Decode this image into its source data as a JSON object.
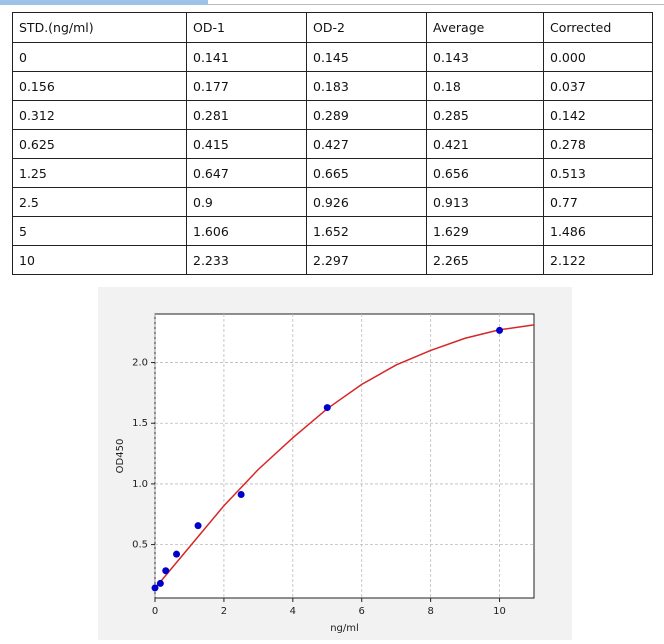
{
  "table": {
    "rows": [
      [
        "STD.(ng/ml)",
        "OD-1",
        "OD-2",
        "Average",
        "Corrected"
      ],
      [
        "0",
        "0.141",
        "0.145",
        "0.143",
        "0.000"
      ],
      [
        "0.156",
        "0.177",
        "0.183",
        "0.18",
        "0.037"
      ],
      [
        "0.312",
        "0.281",
        "0.289",
        "0.285",
        "0.142"
      ],
      [
        "0.625",
        "0.415",
        "0.427",
        "0.421",
        "0.278"
      ],
      [
        "1.25",
        "0.647",
        "0.665",
        "0.656",
        "0.513"
      ],
      [
        "2.5",
        "0.9",
        "0.926",
        "0.913",
        "0.77"
      ],
      [
        "5",
        "1.606",
        "1.652",
        "1.629",
        "1.486"
      ],
      [
        "10",
        "2.233",
        "2.297",
        "2.265",
        "2.122"
      ]
    ]
  },
  "chart_data": {
    "type": "scatter",
    "x_label": "ng/ml",
    "y_label": "OD450",
    "xlim": [
      0,
      11
    ],
    "ylim": [
      0.06,
      2.4
    ],
    "xticks": [
      0,
      2,
      4,
      6,
      8,
      10
    ],
    "yticks": [
      {
        "value": 0.5,
        "label": "0.5"
      },
      {
        "value": 1,
        "label": "1.0"
      },
      {
        "value": 1.5,
        "label": "1.5"
      },
      {
        "value": 2,
        "label": "2.0"
      }
    ],
    "grid": true,
    "series": [
      {
        "style": "line",
        "color": "#d62728",
        "x": [
          0,
          1,
          2,
          3,
          4,
          5,
          6,
          7,
          8,
          9,
          10,
          11
        ],
        "values": [
          0.14,
          0.48,
          0.82,
          1.12,
          1.38,
          1.62,
          1.82,
          1.98,
          2.1,
          2.2,
          2.27,
          2.31
        ]
      },
      {
        "style": "markers",
        "color": "#0000cc",
        "x": [
          0,
          0.156,
          0.312,
          0.625,
          1.25,
          2.5,
          5,
          10
        ],
        "values": [
          0.143,
          0.18,
          0.285,
          0.421,
          0.656,
          0.913,
          1.629,
          2.265
        ]
      }
    ]
  }
}
